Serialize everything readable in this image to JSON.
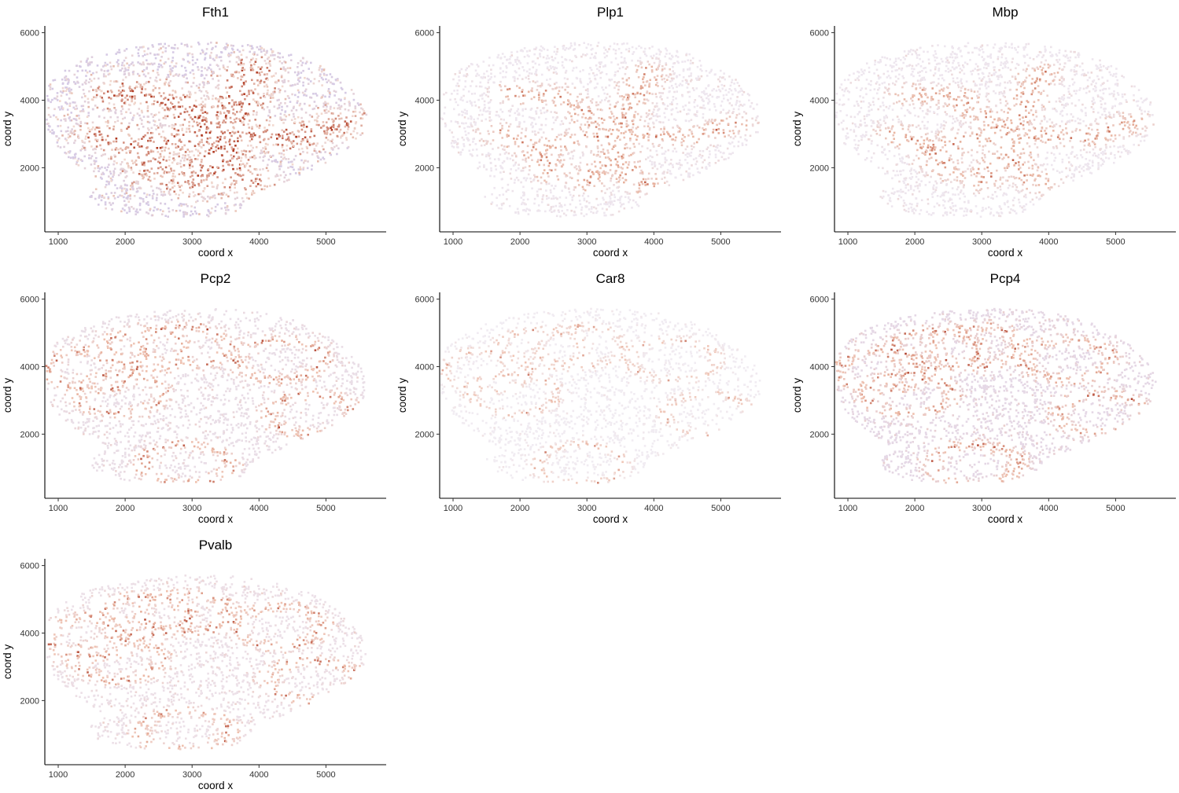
{
  "chart_data": [
    {
      "type": "scatter",
      "title": "Fth1",
      "xlabel": "coord x",
      "ylabel": "coord y",
      "xlim": [
        800,
        5900
      ],
      "ylim": [
        100,
        6200
      ],
      "xticks": [
        1000,
        2000,
        3000,
        4000,
        5000
      ],
      "yticks": [
        2000,
        4000,
        6000
      ],
      "pattern": "broad",
      "density": 1.0,
      "colors": {
        "low": "#c9c3ee",
        "mid": "#f2d9cf",
        "high": "#b03a22"
      }
    },
    {
      "type": "scatter",
      "title": "Plp1",
      "xlabel": "coord x",
      "ylabel": "coord y",
      "xlim": [
        800,
        5900
      ],
      "ylim": [
        100,
        6200
      ],
      "xticks": [
        1000,
        2000,
        3000,
        4000,
        5000
      ],
      "yticks": [
        2000,
        4000,
        6000
      ],
      "pattern": "white_matter",
      "density": 0.85,
      "colors": {
        "low": "#eeecf8",
        "mid": "#eab7a3",
        "high": "#b03a22"
      }
    },
    {
      "type": "scatter",
      "title": "Mbp",
      "xlabel": "coord x",
      "ylabel": "coord y",
      "xlim": [
        800,
        5900
      ],
      "ylim": [
        100,
        6200
      ],
      "xticks": [
        1000,
        2000,
        3000,
        4000,
        5000
      ],
      "yticks": [
        2000,
        4000,
        6000
      ],
      "pattern": "white_matter",
      "density": 0.85,
      "colors": {
        "low": "#eeecf8",
        "mid": "#eab7a3",
        "high": "#b03a22"
      }
    },
    {
      "type": "scatter",
      "title": "Pcp2",
      "xlabel": "coord x",
      "ylabel": "coord y",
      "xlim": [
        800,
        5900
      ],
      "ylim": [
        100,
        6200
      ],
      "xticks": [
        1000,
        2000,
        3000,
        4000,
        5000
      ],
      "yticks": [
        2000,
        4000,
        6000
      ],
      "pattern": "purkinje",
      "density": 0.85,
      "colors": {
        "low": "#e8e5f6",
        "mid": "#efc0ad",
        "high": "#a8301c"
      }
    },
    {
      "type": "scatter",
      "title": "Car8",
      "xlabel": "coord x",
      "ylabel": "coord y",
      "xlim": [
        800,
        5900
      ],
      "ylim": [
        100,
        6200
      ],
      "xticks": [
        1000,
        2000,
        3000,
        4000,
        5000
      ],
      "yticks": [
        2000,
        4000,
        6000
      ],
      "pattern": "purkinje_sparse",
      "density": 0.75,
      "colors": {
        "low": "#f1f0f9",
        "mid": "#f0c6b6",
        "high": "#a8301c"
      }
    },
    {
      "type": "scatter",
      "title": "Pcp4",
      "xlabel": "coord x",
      "ylabel": "coord y",
      "xlim": [
        800,
        5900
      ],
      "ylim": [
        100,
        6200
      ],
      "xticks": [
        1000,
        2000,
        3000,
        4000,
        5000
      ],
      "yticks": [
        2000,
        4000,
        6000
      ],
      "pattern": "purkinje",
      "density": 0.95,
      "colors": {
        "low": "#e2def4",
        "mid": "#efc0ad",
        "high": "#a8301c"
      }
    },
    {
      "type": "scatter",
      "title": "Pvalb",
      "xlabel": "coord x",
      "ylabel": "coord y",
      "xlim": [
        800,
        5900
      ],
      "ylim": [
        100,
        6200
      ],
      "xticks": [
        1000,
        2000,
        3000,
        4000,
        5000
      ],
      "yticks": [
        2000,
        4000,
        6000
      ],
      "pattern": "purkinje",
      "density": 0.85,
      "colors": {
        "low": "#ebe8f7",
        "mid": "#efc0ad",
        "high": "#a8301c"
      }
    }
  ]
}
